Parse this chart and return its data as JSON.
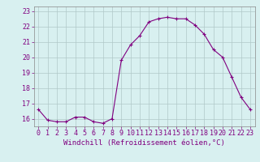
{
  "hours": [
    0,
    1,
    2,
    3,
    4,
    5,
    6,
    7,
    8,
    9,
    10,
    11,
    12,
    13,
    14,
    15,
    16,
    17,
    18,
    19,
    20,
    21,
    22,
    23
  ],
  "windchill": [
    16.6,
    15.9,
    15.8,
    15.8,
    16.1,
    16.1,
    15.8,
    15.7,
    16.0,
    19.8,
    20.8,
    21.4,
    22.3,
    22.5,
    22.6,
    22.5,
    22.5,
    22.1,
    21.5,
    20.5,
    20.0,
    18.7,
    17.4,
    16.6
  ],
  "line_color": "#800080",
  "marker": "+",
  "bg_color": "#d8f0f0",
  "grid_color": "#b0c8c8",
  "xlabel": "Windchill (Refroidissement éolien,°C)",
  "ylabel_ticks": [
    16,
    17,
    18,
    19,
    20,
    21,
    22,
    23
  ],
  "xtick_labels": [
    "0",
    "1",
    "2",
    "3",
    "4",
    "5",
    "6",
    "7",
    "8",
    "9",
    "10",
    "11",
    "12",
    "13",
    "14",
    "15",
    "16",
    "17",
    "18",
    "19",
    "20",
    "21",
    "22",
    "23"
  ],
  "ylim": [
    15.5,
    23.3
  ],
  "xlim": [
    -0.5,
    23.5
  ],
  "tick_fontsize": 6,
  "xlabel_fontsize": 6.5
}
